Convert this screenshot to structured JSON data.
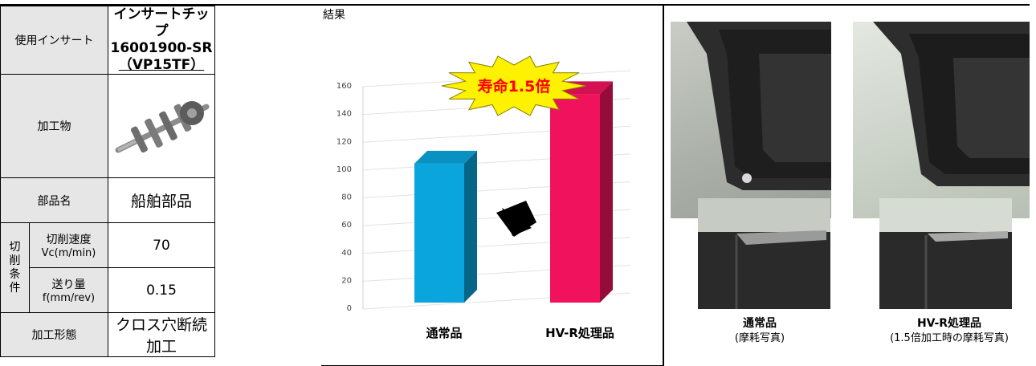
{
  "table": {
    "insert_label": "使用インサート",
    "insert_value": [
      "インサートチップ",
      "16001900-SR",
      "（VP15TF）"
    ],
    "workpiece_label": "加工物",
    "part_label": "部品名",
    "part_value": "船舶部品",
    "cutting_conditions_label": [
      "切",
      "削",
      "条",
      "件"
    ],
    "speed_label": "切削速度",
    "speed_unit": "Vc(m/min)",
    "speed_value": "70",
    "feed_label": "送り量",
    "feed_unit": "f(mm/rev)",
    "feed_value": "0.15",
    "form_label": "加工形態",
    "form_value": "クロス穴断続加工"
  },
  "result_label": "結果",
  "chart_data": {
    "type": "bar",
    "categories": [
      "通常品",
      "HV-R処理品"
    ],
    "values": [
      100,
      150
    ],
    "ylim": [
      0,
      160
    ],
    "yticks": [
      0,
      20,
      40,
      60,
      80,
      100,
      120,
      140,
      160
    ],
    "colors": [
      "#0aa5dc",
      "#f0125c"
    ],
    "grid": true,
    "annotation": "寿命1.5倍",
    "annotation_color": "#ff0000",
    "starburst_color": "#fff200"
  },
  "photos": {
    "left_caption_title": "通常品",
    "left_caption_sub": "(摩耗写真)",
    "right_caption_title": "HV-R処理品",
    "right_caption_sub": "(1.5倍加工時の摩耗写真)"
  }
}
